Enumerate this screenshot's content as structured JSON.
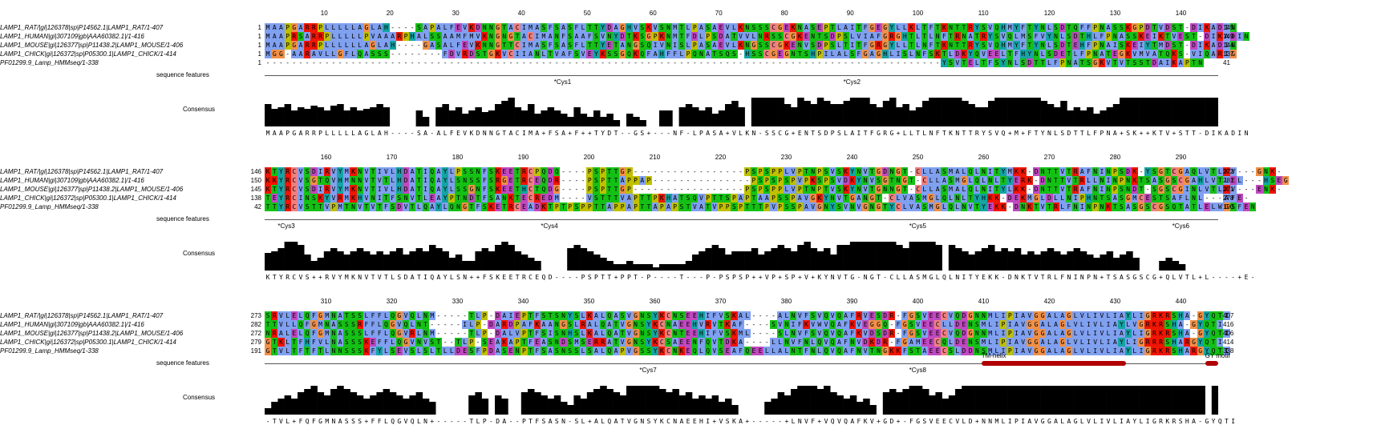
{
  "row_labels": {
    "features": "sequence features",
    "consensus": "Consensus"
  },
  "sequence_names": [
    "LAMP1_RAT/|gi|126378|sp|P14562.1|LAMP1_RAT/1-407",
    "LAMP1_HUMAN|gi|307109|gb|AAA60382.1|/1-416",
    "LAMP1_MOUSE|gi|126377|sp|P11438.2|LAMP1_MOUSE/1-406",
    "LAMP1_CHICK|gi|126372|sp|P05300.1|LAMP1_CHICK/1-414",
    "PF01299.9_Lamp_HMMseq/1-338"
  ],
  "blocks": [
    {
      "ruler": [
        "10",
        "20",
        "30",
        "40",
        "50",
        "60",
        "70",
        "80",
        "90",
        "100",
        "110",
        "120",
        "130",
        "140"
      ],
      "starts": [
        "1",
        "1",
        "1",
        "1",
        "1"
      ],
      "ends": [
        "145",
        "149",
        "144",
        "137",
        "41"
      ],
      "seqs": [
        "MAAPGARRPLLLLLAGLAH----SAPALFEVKDNNGTACIMASFSASFLTTYDAGHVSKVSNMTLPASAEVLKNSSSCGEKNASEPTLAITFGEGYLLKLTFTKNTTRYSVQHMYFTYNLSDTQFFPNASSKGPDTVDST-DIKADIN",
        "MAAPRSARRPLLLLLPVAAARPHALSSAAMFMVKNGNGTACIMANFSAAFSVNYDTKSGPKNMTFDLPSDATVVLNRSSCGKENTSDPSLVIAFGRGHTLTLNFTRNATRYSVQLMSFVYNLSDTHLFPNASSKEIKTVEST-DIKADIN",
        "MAAPGARRPLLLLLLAGLAH----GASALFEVKNNGTTCIMASFSASFLTTYETANGSQIVNISLPASAEVLKNGSSCGKENVSDPSLTITFGRGYLLTLNFTKNTTRYSVQHMYFTYNLSDTEHFPNAISKEIYTMDST-DIKADIN",
        "MGG-AARAVLLGFLQASSS--------FDVRDSTGKVCIIANLTVAFSVEYKSSGQKQFAHFFLPQNATSQS-HSSCGEGNTSHPILALSFGAGHLISLNFSKTLDKYQVEELTFHYNLSDETLFPNATEGKVMVATQKS-VIQARIG",
        "-------------------------------------------------------------------------------------------------------YSVTELTFSYNLSDTTLFPNATSGKVTVTSSTDAIKAPTN"
      ],
      "features": [
        {
          "text": "*Cys1",
          "col": 44
        },
        {
          "text": "*Cys2",
          "col": 88
        }
      ],
      "annot": [],
      "consensus_seq": "MAAPGARRPLLLLLAGLAH----SA-ALFEVKDNNGTACIMA+FSA+F++TYDT--GS+---NF-LPASA+VLKN-SSCG+ENTSDPSLAITFGRG+LLTLNFTKNTTRYSVQ+M+FTYNLSDTTLFPNA+SK++KTV+STT-DIKADIN",
      "cons_heights": [
        0.7,
        0.55,
        0.6,
        0.7,
        0.5,
        0.6,
        0.55,
        0.65,
        0.6,
        0.5,
        0.65,
        0.7,
        0.5,
        0.6,
        0.5,
        0.55,
        0.6,
        0.7,
        0.6,
        0,
        0,
        0,
        0,
        0.5,
        0.3,
        0,
        0.6,
        0.7,
        0.5,
        0.6,
        0.4,
        0.5,
        0.6,
        0.45,
        0.5,
        0.7,
        0.8,
        0.9,
        0.6,
        0.5,
        0.7,
        0.4,
        0.5,
        0.6,
        0.5,
        0.4,
        0.3,
        0.6,
        0.4,
        0.3,
        0.5,
        0.3,
        0.4,
        0.2,
        0,
        0.4,
        0.3,
        0.2,
        0,
        0,
        0.5,
        0.5,
        0,
        0.6,
        0.7,
        0.6,
        0.5,
        0.6,
        0.4,
        0.5,
        0.7,
        0.8,
        0.6,
        0,
        0.9,
        0.9,
        0.9,
        0.9,
        0.9,
        0.7,
        0.6,
        0.9,
        0.8,
        0.7,
        0.9,
        0.8,
        0.7,
        0.7,
        0.8,
        0.9,
        0.9,
        0.9,
        0.7,
        0.6,
        0.8,
        0.9,
        0.6,
        0.7,
        0.5,
        0.6,
        0.8,
        0.9,
        0.9,
        0.9,
        0.9,
        0.9,
        0.8,
        0.7,
        0.6,
        0.6,
        0.8,
        0.9,
        0.9,
        0.9,
        0.9,
        0.9,
        0.9,
        0.9,
        0.8,
        0.7,
        0.6,
        0.8,
        0.5,
        0.6,
        0.5,
        0.6,
        0.4,
        0.5,
        0.6,
        0.7,
        0.9,
        0.9,
        0.9,
        0.9,
        0.9,
        0.9,
        0.9,
        0.9,
        0.9,
        0.9,
        0.9,
        0.9,
        0.9,
        0.9,
        0.9,
        0.9,
        0.9,
        0.9,
        0.9
      ]
    },
    {
      "ruler": [
        "160",
        "170",
        "180",
        "190",
        "200",
        "210",
        "220",
        "230",
        "240",
        "250",
        "260",
        "270",
        "280",
        "290"
      ],
      "starts": [
        "146",
        "150",
        "145",
        "138",
        "42"
      ],
      "ends": [
        "272",
        "281",
        "271",
        "278",
        "190"
      ],
      "seqs": [
        "KTYRCVSDIRVYMKNVTIVLHDATIQAYLPSSNFSKEETRCPQDQ----PSPTTGP-----------------PSPSPPLVPTNPSVSKYNVTGDNGT-CLLASMALQLNITYMKK-DNTTVTRAFNINPSDK-YSGTCGAQLVTLKV---GNK-",
        "KKYRCVSGTQVHMNNVTVTLHDATIQAYLSNSSFSRGETRCEQDR----PSPTTAPPAP---------------PSPSPSPVPKSPSVDKYNVSGTNGT-CLLASMGLQLNLTYERK-DNTTVTRLLNINPNKTSASGSCGAHLVTLEL---HSEG",
        "KTYRCVSDIRVYMKNVTIVLHDATIQAYLSSGNFSKEETHCTQDG----PSPTTGP-----------------PSPSPPLVPTNPTVSKYNVTGNNGT-CLLASMALQLNITYLKK-DNTTVTRAFNINPSNDT-SGSCGINLVTLKV---ENK-",
        "TEYRCINSKYVRMKHVNITFSNVTLEAYPTNDTFSANKTECREDM----VSTTTVAPTTPKHATSQVPTTSPAPTAAPSSPAVGKYNVTGANGT-CLVASMGLQLNLTYHKK-DEKMGLDLLNIPHNTSASGMCESTSAFLNL---AFE-",
        "TTYRCVSTTVPMTNVTVTFSDVTLQAYLQNGTFSKETRCEADKTPTPSPPTTAPPAPTTAPAPSTVATVPPSPTTTPVPSSPAVGNYSVNVGNGTYCLVASMGLQLNVTYEKK-DNKTVTRLFNINPNKTSASGSCGSQTATLELWGSFEN"
      ],
      "features": [
        {
          "text": "*Cys3",
          "col": 2
        },
        {
          "text": "*Cys4",
          "col": 42
        },
        {
          "text": "*Cys5",
          "col": 98
        },
        {
          "text": "*Cys6",
          "col": 138
        }
      ],
      "annot": [],
      "consensus_seq": "KTYRCVS++RVYMKNVTVTLSDATIQAYLSN++FSKEETRCEQD----PSPTT+PPT-P----T---P-PSPSP++VP+SP+V+KYNVTG-NGT-CLLASMGLQLNITYEKK-DNKTVTRLFNINPN+TSASGSCG+QLVTL+L----+E-",
      "cons_heights": [
        0.55,
        0.6,
        0.7,
        0.9,
        0.9,
        0.8,
        0.5,
        0.3,
        0.4,
        0.6,
        0.7,
        0.6,
        0.5,
        0.6,
        0.7,
        0.6,
        0.5,
        0.6,
        0.5,
        0.6,
        0.7,
        0.5,
        0.6,
        0.7,
        0.6,
        0.8,
        0.7,
        0.6,
        0.4,
        0.5,
        0.3,
        0.3,
        0.6,
        0.7,
        0.6,
        0.8,
        0.9,
        0.8,
        0.6,
        0.5,
        0.4,
        0.3,
        0,
        0,
        0,
        0,
        0.7,
        0.8,
        0.7,
        0.6,
        0.5,
        0.4,
        0.3,
        0.2,
        0.2,
        0.3,
        0.2,
        0.2,
        0.2,
        0.1,
        0.2,
        0.2,
        0.2,
        0.2,
        0.3,
        0.5,
        0.6,
        0.7,
        0.8,
        0.7,
        0.5,
        0.6,
        0.6,
        0.6,
        0.7,
        0.5,
        0.6,
        0.7,
        0.8,
        0.7,
        0.6,
        0.8,
        0.9,
        0.7,
        0.6,
        0.7,
        0.5,
        0.8,
        0.8,
        0.9,
        0.9,
        0.9,
        0.9,
        0.9,
        0.9,
        0.9,
        0.8,
        0.7,
        0.9,
        0.9,
        0.9,
        0.9,
        0.8,
        0,
        0.8,
        0.7,
        0.6,
        0.5,
        0.6,
        0.7,
        0.8,
        0.6,
        0.7,
        0.6,
        0.7,
        0.5,
        0.6,
        0.5,
        0.6,
        0.7,
        0.6,
        0.5,
        0.6,
        0.7,
        0.6,
        0.5,
        0.4,
        0.5,
        0.6,
        0.4,
        0.5,
        0.6,
        0.4,
        0,
        0,
        0,
        0.3,
        0.4,
        0.3,
        0.2
      ]
    },
    {
      "ruler": [
        "310",
        "320",
        "330",
        "340",
        "350",
        "360",
        "370",
        "380",
        "390",
        "400",
        "410",
        "420",
        "430",
        "440"
      ],
      "starts": [
        "273",
        "282",
        "272",
        "279",
        "191"
      ],
      "ends": [
        "407",
        "416",
        "406",
        "414",
        "338"
      ],
      "seqs": [
        "SRVLELQFGMNATSSLFFLQGVQLNM-----TLP-DAIEPTFSTSNYSLKALQASVGNSYKCNSEEHIFVSKAL----ALNVFSVQVQAFRVESDR-FGSVEECVQDGNNMLIPIAVGGALAGLVLIVLIAYLIGRKRSHA-GYQTI",
        "TTVLLQFGMNASSSRFFLQGVQLNT-----ILP-DARDPAFKAANGSLRALQATVGNSYKCNAEEHVRVTKAF----SVNIFKVWVQAFKVEGGQ-FGSVEECLLDENSMLIPIAVGGALAGLVLIVLIAYLVGRKRSHA-GYQTI",
        "NRALELQFGMNASSSLFFLQGVRLNM-----TLP-DALVPTFSISNHSLKALQATVGNSYKCNTEEHIFVSKML----SLNVFSVQVQAFKVDSDR-FGSVEECVQDGNNMLIPIAVGGALAGLVLIVLIAYLIGRKRSHA-GYQTI",
        "GTKLTFHFVLNASSSKEFFLQGVNVST--TLP-SEAKAPTFEASNDSMSERRATVGNSYKCSAEENFQVTDKA----LLNVFNLQVQAFNVDKDR-FGAMEECQLDENSMLIPIAVGGALAGLVLIVLIAYLIGRRRSHARGYQTI",
        "GTVLTFTFTLNNSSSKFYLSEVSLSLTLLDESFPDASENPTFSASNSSLSALQAPVGSSYKCNKEQLQVSEAFQEELLALNTFNLQVQAFNVTNGKKFSTAEECSLDDNSMLIPIAVGGALAGLVLIVLIAYLIGRKRSHARGYQTI"
      ],
      "features": [
        {
          "text": "*Cys7",
          "col": 57
        },
        {
          "text": "*Cys8",
          "col": 98
        }
      ],
      "annot": [
        {
          "text": "TM-helix",
          "col_start": 109,
          "col_end": 131,
          "color": "#b00000"
        },
        {
          "text": "GY motif",
          "col_start": 143,
          "col_end": 145,
          "color": "#b00000"
        }
      ],
      "consensus_seq": "-TVL+FQFGMNASSS+FFLQGVQLN+-----TLP-DA--PTFSASN-SL+ALQATVGNSYKCNAEEHI+VSKA+-----+LNVF+VQVQAFKV+GD+-FGSVEECVLD+NNMLIPIAVGGALAGLVLIVLIAYLIGRKRSHA-GYQTI",
      "cons_heights": [
        0.2,
        0.4,
        0.5,
        0.6,
        0.5,
        0.7,
        0.8,
        0.9,
        0.7,
        0.6,
        0.8,
        0.9,
        0.8,
        0.7,
        0.6,
        0.5,
        0.6,
        0.7,
        0.8,
        0.7,
        0.6,
        0.5,
        0.6,
        0.7,
        0.5,
        0.4,
        0,
        0,
        0,
        0,
        0,
        0.6,
        0.7,
        0.5,
        0,
        0.6,
        0.5,
        0,
        0,
        0.7,
        0.8,
        0.7,
        0.6,
        0.5,
        0.6,
        0.4,
        0.3,
        0.6,
        0.5,
        0.7,
        0.8,
        0.9,
        0.8,
        0.7,
        0.6,
        0.9,
        0.9,
        0.9,
        0.9,
        0.9,
        0.8,
        0.7,
        0.8,
        0.6,
        0.7,
        0.5,
        0.6,
        0.5,
        0.6,
        0.4,
        0.5,
        0.3,
        0,
        0,
        0,
        0,
        0.4,
        0.5,
        0.7,
        0.6,
        0.8,
        0.9,
        0.9,
        0.9,
        0.8,
        0.9,
        0.7,
        0.6,
        0.5,
        0.6,
        0.4,
        0.5,
        0.3,
        0,
        0.7,
        0.8,
        0.7,
        0.8,
        0.9,
        0.9,
        0.8,
        0.6,
        0.7,
        0.5,
        0.6,
        0.8,
        0.9,
        0.9,
        0.9,
        0.9,
        0.9,
        0.9,
        0.9,
        0.9,
        0.9,
        0.9,
        0.9,
        0.9,
        0.9,
        0.9,
        0.9,
        0.9,
        0.9,
        0.9,
        0.9,
        0.9,
        0.9,
        0.9,
        0.9,
        0.9,
        0.9,
        0.9,
        0.9,
        0.9,
        0.9,
        0.9,
        0.9,
        0.9,
        0.9,
        0.9,
        0.9,
        0.9,
        0.9,
        0,
        0.9,
        0.9,
        0.9,
        0.9,
        0.9
      ]
    }
  ],
  "colors": {
    "hydrophobic": "#80a0f0",
    "positive": "#f01505",
    "negative": "#c048c0",
    "polar": "#15c015",
    "cys": "#f08080",
    "gly": "#f09048",
    "pro": "#c0c000",
    "aromatic": "#15a4a4",
    "consensus_bar": "#000000"
  }
}
